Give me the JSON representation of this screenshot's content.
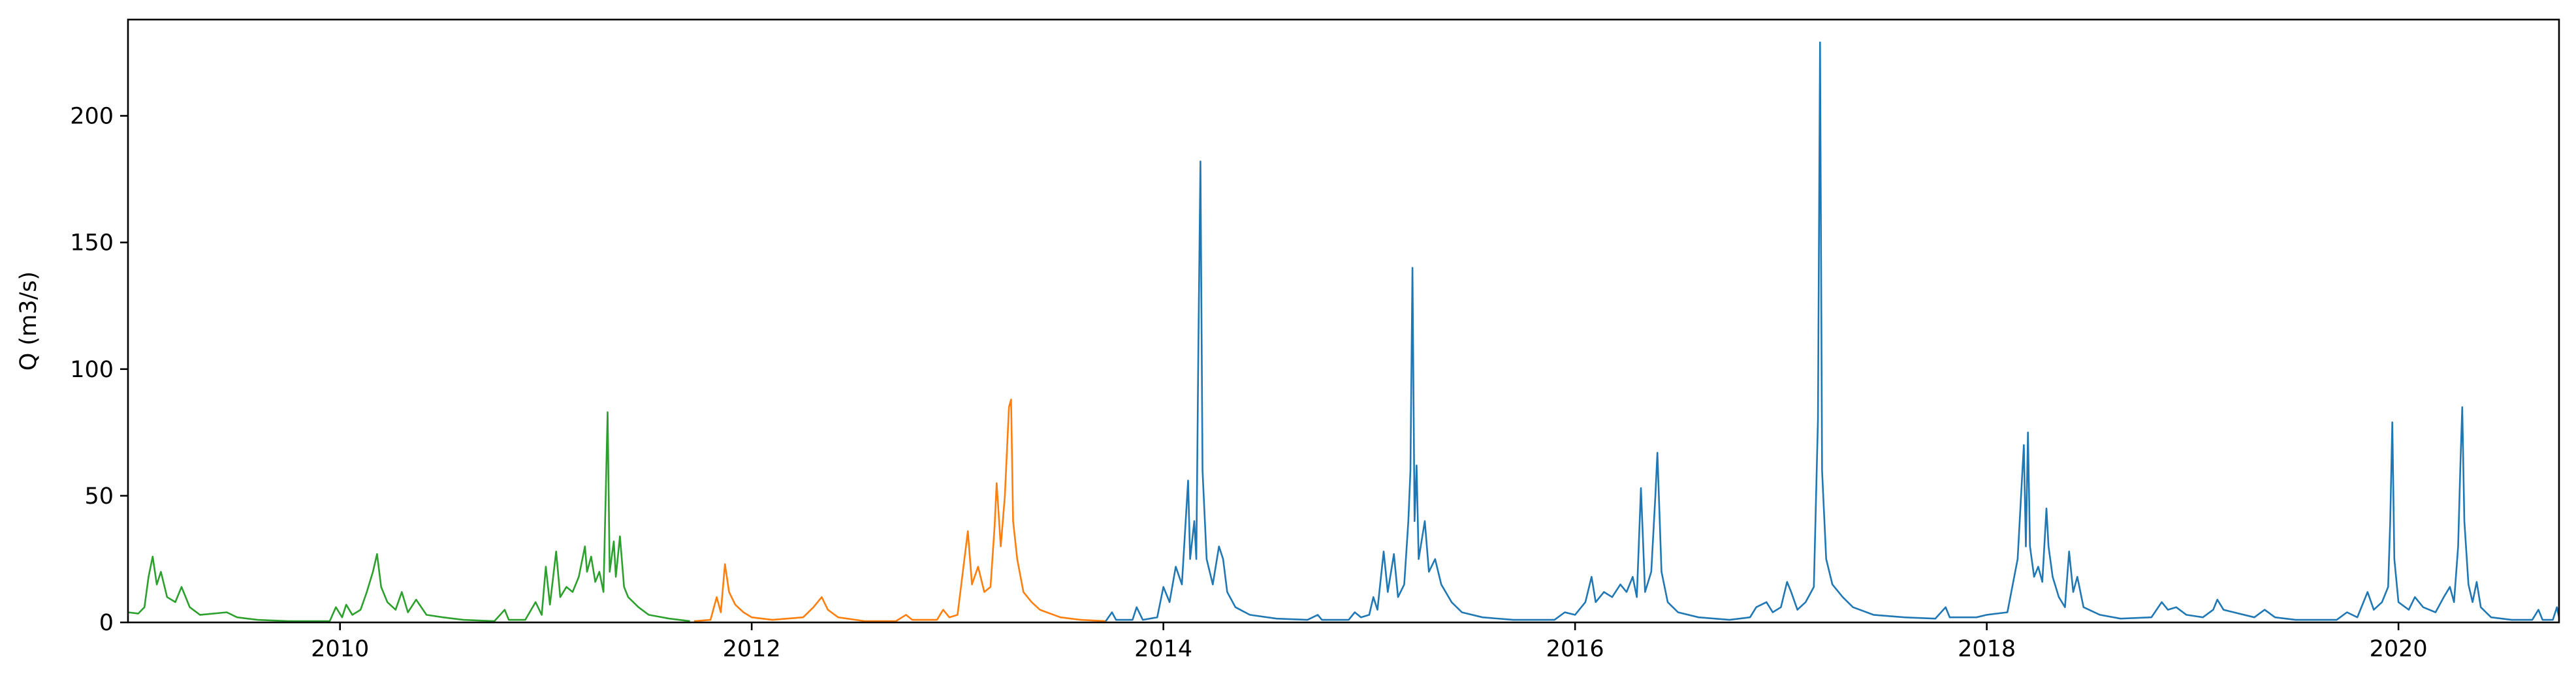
{
  "chart_data": {
    "type": "line",
    "title": "",
    "xlabel": "",
    "ylabel": "Q (m3/s)",
    "xlim": [
      2008.97,
      2020.78
    ],
    "ylim": [
      0,
      238
    ],
    "x_ticks": [
      2010,
      2012,
      2014,
      2016,
      2018,
      2020
    ],
    "x_tick_labels": [
      "2010",
      "2012",
      "2014",
      "2016",
      "2018",
      "2020"
    ],
    "y_ticks": [
      0,
      50,
      100,
      150,
      200
    ],
    "y_tick_labels": [
      "0",
      "50",
      "100",
      "150",
      "200"
    ],
    "grid": false,
    "legend": "none",
    "series": [
      {
        "color": "#2ca02c",
        "points": [
          [
            2008.97,
            4
          ],
          [
            2009.02,
            3.5
          ],
          [
            2009.05,
            6
          ],
          [
            2009.07,
            18
          ],
          [
            2009.09,
            26
          ],
          [
            2009.11,
            15
          ],
          [
            2009.13,
            20
          ],
          [
            2009.16,
            10
          ],
          [
            2009.2,
            8
          ],
          [
            2009.23,
            14
          ],
          [
            2009.27,
            6
          ],
          [
            2009.32,
            3
          ],
          [
            2009.45,
            4
          ],
          [
            2009.5,
            2
          ],
          [
            2009.6,
            1
          ],
          [
            2009.75,
            0.5
          ],
          [
            2009.95,
            0.5
          ],
          [
            2009.98,
            6
          ],
          [
            2010.01,
            2
          ],
          [
            2010.03,
            7
          ],
          [
            2010.06,
            3
          ],
          [
            2010.1,
            5
          ],
          [
            2010.13,
            12
          ],
          [
            2010.16,
            20
          ],
          [
            2010.18,
            27
          ],
          [
            2010.2,
            14
          ],
          [
            2010.23,
            8
          ],
          [
            2010.27,
            5
          ],
          [
            2010.3,
            12
          ],
          [
            2010.33,
            4
          ],
          [
            2010.37,
            9
          ],
          [
            2010.42,
            3
          ],
          [
            2010.5,
            2
          ],
          [
            2010.6,
            1
          ],
          [
            2010.75,
            0.5
          ],
          [
            2010.8,
            5
          ],
          [
            2010.82,
            1
          ],
          [
            2010.9,
            1
          ],
          [
            2010.95,
            8
          ],
          [
            2010.98,
            3
          ],
          [
            2011.0,
            22
          ],
          [
            2011.02,
            7
          ],
          [
            2011.05,
            28
          ],
          [
            2011.07,
            10
          ],
          [
            2011.1,
            14
          ],
          [
            2011.13,
            12
          ],
          [
            2011.16,
            18
          ],
          [
            2011.19,
            30
          ],
          [
            2011.2,
            20
          ],
          [
            2011.22,
            26
          ],
          [
            2011.24,
            16
          ],
          [
            2011.26,
            20
          ],
          [
            2011.28,
            12
          ],
          [
            2011.3,
            83
          ],
          [
            2011.31,
            20
          ],
          [
            2011.33,
            32
          ],
          [
            2011.34,
            18
          ],
          [
            2011.36,
            34
          ],
          [
            2011.38,
            14
          ],
          [
            2011.4,
            10
          ],
          [
            2011.45,
            6
          ],
          [
            2011.5,
            3
          ],
          [
            2011.6,
            1.5
          ],
          [
            2011.7,
            0.5
          ]
        ]
      },
      {
        "color": "#ff7f0e",
        "points": [
          [
            2011.72,
            0.5
          ],
          [
            2011.8,
            1
          ],
          [
            2011.83,
            10
          ],
          [
            2011.85,
            4
          ],
          [
            2011.87,
            23
          ],
          [
            2011.89,
            12
          ],
          [
            2011.92,
            7
          ],
          [
            2011.96,
            4
          ],
          [
            2012.0,
            2
          ],
          [
            2012.1,
            1
          ],
          [
            2012.25,
            2
          ],
          [
            2012.3,
            6
          ],
          [
            2012.34,
            10
          ],
          [
            2012.37,
            5
          ],
          [
            2012.42,
            2
          ],
          [
            2012.55,
            0.5
          ],
          [
            2012.7,
            0.5
          ],
          [
            2012.75,
            3
          ],
          [
            2012.78,
            1
          ],
          [
            2012.9,
            1
          ],
          [
            2012.93,
            5
          ],
          [
            2012.96,
            2
          ],
          [
            2013.0,
            3
          ],
          [
            2013.05,
            36
          ],
          [
            2013.07,
            15
          ],
          [
            2013.1,
            22
          ],
          [
            2013.13,
            12
          ],
          [
            2013.16,
            14
          ],
          [
            2013.18,
            38
          ],
          [
            2013.19,
            55
          ],
          [
            2013.21,
            30
          ],
          [
            2013.23,
            50
          ],
          [
            2013.25,
            85
          ],
          [
            2013.26,
            88
          ],
          [
            2013.27,
            40
          ],
          [
            2013.29,
            25
          ],
          [
            2013.32,
            12
          ],
          [
            2013.36,
            8
          ],
          [
            2013.4,
            5
          ],
          [
            2013.5,
            2
          ],
          [
            2013.6,
            1
          ],
          [
            2013.72,
            0.5
          ]
        ]
      },
      {
        "color": "#1f77b4",
        "points": [
          [
            2013.72,
            0.5
          ],
          [
            2013.75,
            4
          ],
          [
            2013.77,
            1
          ],
          [
            2013.85,
            1
          ],
          [
            2013.87,
            6
          ],
          [
            2013.9,
            1
          ],
          [
            2013.97,
            2
          ],
          [
            2014.0,
            14
          ],
          [
            2014.03,
            8
          ],
          [
            2014.06,
            22
          ],
          [
            2014.09,
            15
          ],
          [
            2014.12,
            56
          ],
          [
            2014.13,
            25
          ],
          [
            2014.15,
            40
          ],
          [
            2014.16,
            25
          ],
          [
            2014.17,
            110
          ],
          [
            2014.18,
            182
          ],
          [
            2014.19,
            60
          ],
          [
            2014.21,
            25
          ],
          [
            2014.24,
            15
          ],
          [
            2014.27,
            30
          ],
          [
            2014.29,
            25
          ],
          [
            2014.31,
            12
          ],
          [
            2014.35,
            6
          ],
          [
            2014.42,
            3
          ],
          [
            2014.55,
            1.5
          ],
          [
            2014.7,
            1
          ],
          [
            2014.75,
            3
          ],
          [
            2014.77,
            1
          ],
          [
            2014.9,
            1
          ],
          [
            2014.93,
            4
          ],
          [
            2014.96,
            2
          ],
          [
            2015.0,
            3
          ],
          [
            2015.02,
            10
          ],
          [
            2015.04,
            5
          ],
          [
            2015.07,
            28
          ],
          [
            2015.09,
            12
          ],
          [
            2015.12,
            27
          ],
          [
            2015.14,
            10
          ],
          [
            2015.17,
            15
          ],
          [
            2015.19,
            40
          ],
          [
            2015.2,
            60
          ],
          [
            2015.21,
            140
          ],
          [
            2015.22,
            40
          ],
          [
            2015.23,
            62
          ],
          [
            2015.24,
            25
          ],
          [
            2015.27,
            40
          ],
          [
            2015.29,
            20
          ],
          [
            2015.32,
            25
          ],
          [
            2015.35,
            15
          ],
          [
            2015.4,
            8
          ],
          [
            2015.45,
            4
          ],
          [
            2015.55,
            2
          ],
          [
            2015.7,
            1
          ],
          [
            2015.9,
            1
          ],
          [
            2015.95,
            4
          ],
          [
            2016.0,
            3
          ],
          [
            2016.05,
            8
          ],
          [
            2016.08,
            18
          ],
          [
            2016.1,
            8
          ],
          [
            2016.14,
            12
          ],
          [
            2016.18,
            10
          ],
          [
            2016.22,
            15
          ],
          [
            2016.25,
            12
          ],
          [
            2016.28,
            18
          ],
          [
            2016.3,
            10
          ],
          [
            2016.32,
            53
          ],
          [
            2016.34,
            12
          ],
          [
            2016.37,
            20
          ],
          [
            2016.39,
            50
          ],
          [
            2016.4,
            67
          ],
          [
            2016.42,
            20
          ],
          [
            2016.45,
            8
          ],
          [
            2016.5,
            4
          ],
          [
            2016.6,
            2
          ],
          [
            2016.75,
            1
          ],
          [
            2016.85,
            2
          ],
          [
            2016.88,
            6
          ],
          [
            2016.93,
            8
          ],
          [
            2016.96,
            4
          ],
          [
            2017.0,
            6
          ],
          [
            2017.03,
            16
          ],
          [
            2017.05,
            12
          ],
          [
            2017.08,
            5
          ],
          [
            2017.12,
            8
          ],
          [
            2017.16,
            14
          ],
          [
            2017.18,
            80
          ],
          [
            2017.19,
            229
          ],
          [
            2017.2,
            60
          ],
          [
            2017.22,
            25
          ],
          [
            2017.25,
            15
          ],
          [
            2017.3,
            10
          ],
          [
            2017.35,
            6
          ],
          [
            2017.45,
            3
          ],
          [
            2017.6,
            2
          ],
          [
            2017.75,
            1.5
          ],
          [
            2017.8,
            6
          ],
          [
            2017.82,
            2
          ],
          [
            2017.95,
            2
          ],
          [
            2018.0,
            3
          ],
          [
            2018.1,
            4
          ],
          [
            2018.15,
            25
          ],
          [
            2018.17,
            55
          ],
          [
            2018.18,
            70
          ],
          [
            2018.19,
            30
          ],
          [
            2018.2,
            75
          ],
          [
            2018.21,
            30
          ],
          [
            2018.23,
            18
          ],
          [
            2018.25,
            22
          ],
          [
            2018.27,
            16
          ],
          [
            2018.29,
            45
          ],
          [
            2018.3,
            30
          ],
          [
            2018.32,
            18
          ],
          [
            2018.35,
            10
          ],
          [
            2018.38,
            6
          ],
          [
            2018.4,
            28
          ],
          [
            2018.42,
            12
          ],
          [
            2018.44,
            18
          ],
          [
            2018.47,
            6
          ],
          [
            2018.55,
            3
          ],
          [
            2018.65,
            1.5
          ],
          [
            2018.8,
            2
          ],
          [
            2018.85,
            8
          ],
          [
            2018.88,
            5
          ],
          [
            2018.92,
            6
          ],
          [
            2018.97,
            3
          ],
          [
            2019.05,
            2
          ],
          [
            2019.1,
            5
          ],
          [
            2019.12,
            9
          ],
          [
            2019.15,
            5
          ],
          [
            2019.2,
            4
          ],
          [
            2019.3,
            2
          ],
          [
            2019.35,
            5
          ],
          [
            2019.4,
            2
          ],
          [
            2019.5,
            1
          ],
          [
            2019.7,
            1
          ],
          [
            2019.75,
            4
          ],
          [
            2019.8,
            2
          ],
          [
            2019.85,
            12
          ],
          [
            2019.88,
            5
          ],
          [
            2019.92,
            8
          ],
          [
            2019.95,
            14
          ],
          [
            2019.96,
            40
          ],
          [
            2019.97,
            79
          ],
          [
            2019.98,
            25
          ],
          [
            2020.0,
            8
          ],
          [
            2020.05,
            5
          ],
          [
            2020.08,
            10
          ],
          [
            2020.12,
            6
          ],
          [
            2020.18,
            4
          ],
          [
            2020.22,
            10
          ],
          [
            2020.25,
            14
          ],
          [
            2020.27,
            8
          ],
          [
            2020.29,
            30
          ],
          [
            2020.3,
            60
          ],
          [
            2020.31,
            85
          ],
          [
            2020.32,
            40
          ],
          [
            2020.34,
            15
          ],
          [
            2020.36,
            8
          ],
          [
            2020.38,
            16
          ],
          [
            2020.4,
            6
          ],
          [
            2020.45,
            2
          ],
          [
            2020.55,
            1
          ],
          [
            2020.65,
            1
          ],
          [
            2020.68,
            5
          ],
          [
            2020.7,
            1
          ],
          [
            2020.75,
            1
          ],
          [
            2020.77,
            6
          ],
          [
            2020.78,
            2
          ]
        ]
      }
    ]
  }
}
